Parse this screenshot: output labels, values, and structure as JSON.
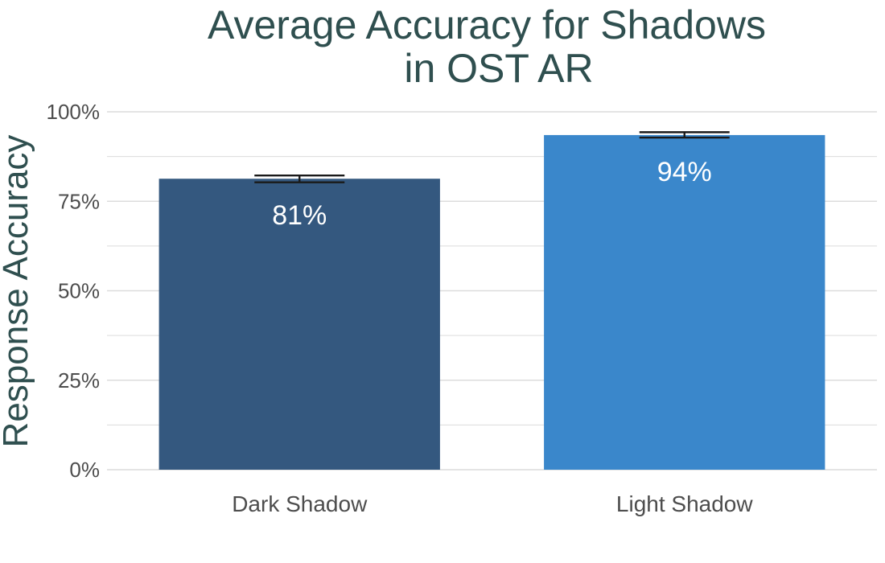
{
  "chart_data": {
    "type": "bar",
    "title_lines": [
      "Average Accuracy for Shadows",
      "in OST AR"
    ],
    "xlabel": "",
    "ylabel": "Response Accuracy",
    "ylim": [
      0,
      1
    ],
    "yticks": [
      {
        "value": 0,
        "label": "0%"
      },
      {
        "value": 0.25,
        "label": "25%"
      },
      {
        "value": 0.5,
        "label": "50%"
      },
      {
        "value": 0.75,
        "label": "75%"
      },
      {
        "value": 1.0,
        "label": "100%"
      }
    ],
    "minor_gridlines": [
      0.125,
      0.375,
      0.625,
      0.875
    ],
    "grid": true,
    "legend": "none",
    "categories": [
      "Dark Shadow",
      "Light Shadow"
    ],
    "values": [
      0.813,
      0.935
    ],
    "error_bars": [
      {
        "low": 0.803,
        "high": 0.822
      },
      {
        "low": 0.928,
        "high": 0.943
      }
    ],
    "data_labels": [
      "81%",
      "94%"
    ],
    "colors": [
      "#34587f",
      "#3a87cb"
    ],
    "title_color": "#2f4f4f",
    "tick_color": "#4d4d4d",
    "grid_color": "#dcdcdc",
    "label_color": "#ffffff"
  }
}
